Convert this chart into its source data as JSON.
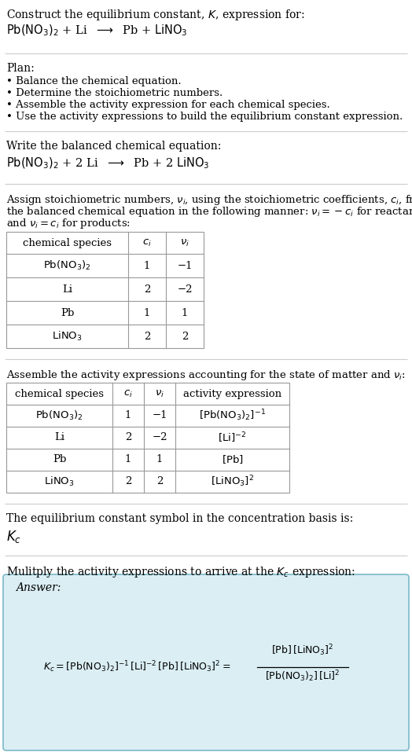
{
  "bg_color": "#ffffff",
  "title_line1": "Construct the equilibrium constant, $K$, expression for:",
  "title_line2": "$\\mathrm{Pb(NO_3)_2}$ + Li  $\\longrightarrow$  Pb + $\\mathrm{LiNO_3}$",
  "plan_header": "Plan:",
  "plan_bullets": [
    "• Balance the chemical equation.",
    "• Determine the stoichiometric numbers.",
    "• Assemble the activity expression for each chemical species.",
    "• Use the activity expressions to build the equilibrium constant expression."
  ],
  "balanced_header": "Write the balanced chemical equation:",
  "balanced_eq": "$\\mathrm{Pb(NO_3)_2}$ + 2 Li  $\\longrightarrow$  Pb + 2 $\\mathrm{LiNO_3}$",
  "stoich_intro_lines": [
    "Assign stoichiometric numbers, $\\nu_i$, using the stoichiometric coefficients, $c_i$, from",
    "the balanced chemical equation in the following manner: $\\nu_i = -c_i$ for reactants",
    "and $\\nu_i = c_i$ for products:"
  ],
  "table1_headers": [
    "chemical species",
    "$c_i$",
    "$\\nu_i$"
  ],
  "table1_rows": [
    [
      "$\\mathrm{Pb(NO_3)_2}$",
      "1",
      "−1"
    ],
    [
      "Li",
      "2",
      "−2"
    ],
    [
      "Pb",
      "1",
      "1"
    ],
    [
      "$\\mathrm{LiNO_3}$",
      "2",
      "2"
    ]
  ],
  "activity_intro": "Assemble the activity expressions accounting for the state of matter and $\\nu_i$:",
  "table2_headers": [
    "chemical species",
    "$c_i$",
    "$\\nu_i$",
    "activity expression"
  ],
  "table2_rows": [
    [
      "$\\mathrm{Pb(NO_3)_2}$",
      "1",
      "−1",
      "$[\\mathrm{Pb(NO_3)_2}]^{-1}$"
    ],
    [
      "Li",
      "2",
      "−2",
      "$[\\mathrm{Li}]^{-2}$"
    ],
    [
      "Pb",
      "1",
      "1",
      "$[\\mathrm{Pb}]$"
    ],
    [
      "$\\mathrm{LiNO_3}$",
      "2",
      "2",
      "$[\\mathrm{LiNO_3}]^2$"
    ]
  ],
  "kc_symbol_text": "The equilibrium constant symbol in the concentration basis is:",
  "kc_symbol": "$K_c$",
  "multiply_text": "Mulitply the activity expressions to arrive at the $K_c$ expression:",
  "answer_box_color": "#daeef3",
  "answer_border_color": "#7ab8c8",
  "answer_label": "Answer:",
  "kc_lhs": "$K_c = [\\mathrm{Pb(NO_3)_2}]^{-1}\\,[\\mathrm{Li}]^{-2}\\,[\\mathrm{Pb}]\\,[\\mathrm{LiNO_3}]^2 = $",
  "kc_num": "$[\\mathrm{Pb}]\\,[\\mathrm{LiNO_3}]^2$",
  "kc_den": "$[\\mathrm{Pb(NO_3)_2}]\\,[\\mathrm{Li}]^2$"
}
